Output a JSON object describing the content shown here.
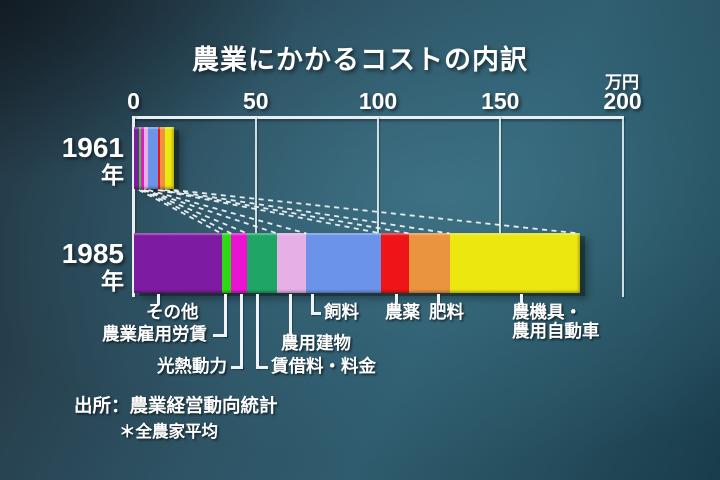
{
  "title": "農業にかかるコストの内訳",
  "source": {
    "line1": "出所：農業経営動向統計",
    "line2": "＊全農家平均"
  },
  "rows": [
    {
      "year": "1961",
      "suffix": "年"
    },
    {
      "year": "1985",
      "suffix": "年"
    }
  ],
  "labels": {
    "machinery_line1": "農機具・",
    "machinery_line2": "農用自動車"
  },
  "chart_data": {
    "type": "bar",
    "stacked": true,
    "orientation": "horizontal",
    "title": "農業にかかるコストの内訳",
    "unit": "万円",
    "xlim": [
      0,
      200
    ],
    "x_ticks": [
      0,
      50,
      100,
      150,
      200
    ],
    "gridlines": true,
    "legend": "leader-line labels below 1985 bar",
    "categories": [
      "その他",
      "農業雇用労賃",
      "光熱動力",
      "賃借料・料金",
      "農用建物",
      "飼料",
      "農薬",
      "肥料",
      "農機具・農用自動車"
    ],
    "colors": [
      "#7d1ca3",
      "#2ed916",
      "#ea13d2",
      "#1fa566",
      "#e6b0e6",
      "#6b93ea",
      "#ee1417",
      "#eb9440",
      "#ece70f"
    ],
    "series": [
      {
        "name": "1961年",
        "values": [
          2.2,
          1.0,
          1.0,
          0.3,
          1.6,
          3.9,
          1.0,
          1.9,
          3.5
        ],
        "total": 16.4
      },
      {
        "name": "1985年",
        "values": [
          36.0,
          4.0,
          6.5,
          12.3,
          11.9,
          30.7,
          11.5,
          16.4,
          53.2
        ],
        "total": 182.5
      }
    ],
    "connector_lines": "dashed lines join cumulative segment boundaries of 1961 bar to 1985 bar"
  }
}
